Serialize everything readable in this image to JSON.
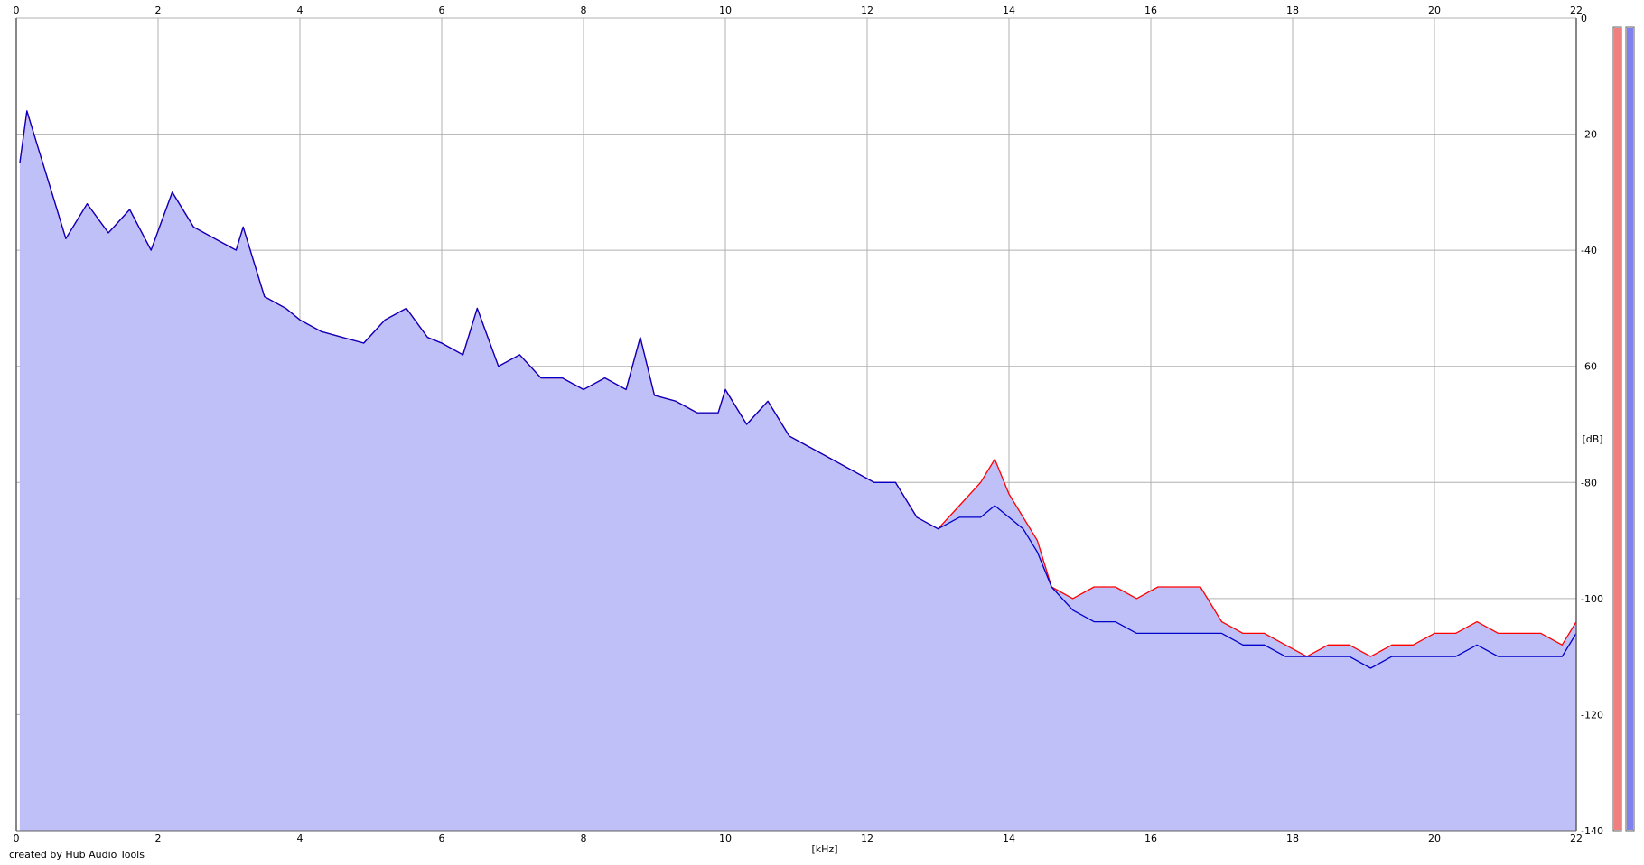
{
  "chart_data": {
    "type": "area",
    "xlabel": "[kHz]",
    "ylabel": "[dB]",
    "xlim": [
      0,
      22
    ],
    "ylim": [
      -140,
      0
    ],
    "x_ticks": [
      0,
      2,
      4,
      6,
      8,
      10,
      12,
      14,
      16,
      18,
      20,
      22
    ],
    "y_ticks": [
      0,
      -20,
      -40,
      -60,
      -80,
      -100,
      -120,
      -140
    ],
    "grid": true,
    "legend": "none",
    "colors": {
      "red_series": "#ff0000",
      "blue_series": "#0000c8",
      "fill": "#c0c0f8",
      "grid": "#b0b0b0"
    },
    "series": [
      {
        "color": "#ff0000",
        "x": [
          0.05,
          0.15,
          0.3,
          0.5,
          0.7,
          1.0,
          1.3,
          1.6,
          1.9,
          2.2,
          2.5,
          2.8,
          3.1,
          3.2,
          3.5,
          3.8,
          4.0,
          4.3,
          4.6,
          4.9,
          5.2,
          5.5,
          5.8,
          6.0,
          6.3,
          6.5,
          6.8,
          7.1,
          7.4,
          7.7,
          8.0,
          8.3,
          8.6,
          8.8,
          9.0,
          9.3,
          9.6,
          9.9,
          10.0,
          10.3,
          10.6,
          10.9,
          11.2,
          11.5,
          11.8,
          12.1,
          12.4,
          12.7,
          13.0,
          13.3,
          13.6,
          13.8,
          14.0,
          14.2,
          14.4,
          14.6,
          14.9,
          15.2,
          15.5,
          15.8,
          16.1,
          16.4,
          16.7,
          17.0,
          17.3,
          17.6,
          17.9,
          18.2,
          18.5,
          18.8,
          19.1,
          19.4,
          19.7,
          20.0,
          20.3,
          20.6,
          20.9,
          21.2,
          21.5,
          21.8,
          22.0
        ],
        "y": [
          -25,
          -16,
          -22,
          -30,
          -38,
          -32,
          -37,
          -33,
          -40,
          -30,
          -36,
          -38,
          -40,
          -36,
          -48,
          -50,
          -52,
          -54,
          -55,
          -56,
          -52,
          -50,
          -55,
          -56,
          -58,
          -50,
          -60,
          -58,
          -62,
          -62,
          -64,
          -62,
          -64,
          -55,
          -65,
          -66,
          -68,
          -68,
          -64,
          -70,
          -66,
          -72,
          -74,
          -76,
          -78,
          -80,
          -80,
          -86,
          -88,
          -84,
          -80,
          -76,
          -82,
          -86,
          -90,
          -98,
          -100,
          -98,
          -98,
          -100,
          -98,
          -98,
          -98,
          -104,
          -106,
          -106,
          -108,
          -110,
          -108,
          -108,
          -110,
          -108,
          -108,
          -106,
          -106,
          -104,
          -106,
          -106,
          -106,
          -108,
          -104
        ]
      },
      {
        "color": "#0000c8",
        "x": [
          0.05,
          0.15,
          0.3,
          0.5,
          0.7,
          1.0,
          1.3,
          1.6,
          1.9,
          2.2,
          2.5,
          2.8,
          3.1,
          3.2,
          3.5,
          3.8,
          4.0,
          4.3,
          4.6,
          4.9,
          5.2,
          5.5,
          5.8,
          6.0,
          6.3,
          6.5,
          6.8,
          7.1,
          7.4,
          7.7,
          8.0,
          8.3,
          8.6,
          8.8,
          9.0,
          9.3,
          9.6,
          9.9,
          10.0,
          10.3,
          10.6,
          10.9,
          11.2,
          11.5,
          11.8,
          12.1,
          12.4,
          12.7,
          13.0,
          13.3,
          13.6,
          13.8,
          14.0,
          14.2,
          14.4,
          14.6,
          14.9,
          15.2,
          15.5,
          15.8,
          16.1,
          16.4,
          16.7,
          17.0,
          17.3,
          17.6,
          17.9,
          18.2,
          18.5,
          18.8,
          19.1,
          19.4,
          19.7,
          20.0,
          20.3,
          20.6,
          20.9,
          21.2,
          21.5,
          21.8,
          22.0
        ],
        "y": [
          -25,
          -16,
          -22,
          -30,
          -38,
          -32,
          -37,
          -33,
          -40,
          -30,
          -36,
          -38,
          -40,
          -36,
          -48,
          -50,
          -52,
          -54,
          -55,
          -56,
          -52,
          -50,
          -55,
          -56,
          -58,
          -50,
          -60,
          -58,
          -62,
          -62,
          -64,
          -62,
          -64,
          -55,
          -65,
          -66,
          -68,
          -68,
          -64,
          -70,
          -66,
          -72,
          -74,
          -76,
          -78,
          -80,
          -80,
          -86,
          -88,
          -86,
          -86,
          -84,
          -86,
          -88,
          -92,
          -98,
          -102,
          -104,
          -104,
          -106,
          -106,
          -106,
          -106,
          -106,
          -108,
          -108,
          -110,
          -110,
          -110,
          -110,
          -112,
          -110,
          -110,
          -110,
          -110,
          -108,
          -110,
          -110,
          -110,
          -110,
          -106
        ]
      }
    ],
    "level_bars": [
      {
        "color": "#f08080",
        "level": 0
      },
      {
        "color": "#8080f0",
        "level": 0
      }
    ]
  },
  "footer": {
    "credit": "created by Hub Audio Tools"
  }
}
